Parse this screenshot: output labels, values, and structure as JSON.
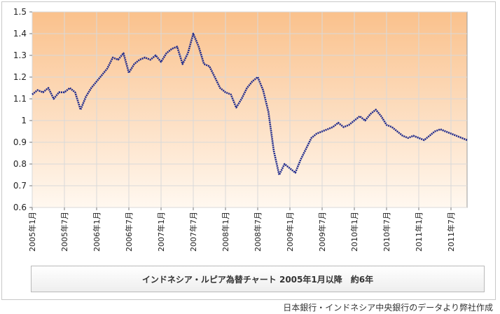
{
  "caption": "インドネシア・ルピア為替チャート 2005年1月以降　約6年",
  "source_note": "日本銀行・インドネシア中央銀行のデータより弊社作成",
  "colors": {
    "series": "#1f2a8c",
    "plot_bg_top": "#fac18c",
    "plot_bg_bottom": "#fff8f0",
    "grid": "#d9d9d9"
  },
  "chart_data": {
    "type": "line",
    "title": "",
    "xlabel": "",
    "ylabel": "",
    "ylim": [
      0.6,
      1.5
    ],
    "xlim": [
      "2005-01",
      "2011-10"
    ],
    "grid": true,
    "legend": "none",
    "yticks": [
      "0.6",
      "0.7",
      "0.8",
      "0.9",
      "1",
      "1.1",
      "1.2",
      "1.3",
      "1.4",
      "1.5"
    ],
    "xticks": [
      {
        "date": "2005-01",
        "label": "2005年1月"
      },
      {
        "date": "2005-07",
        "label": "2005年7月"
      },
      {
        "date": "2006-01",
        "label": "2006年1月"
      },
      {
        "date": "2006-07",
        "label": "2006年7月"
      },
      {
        "date": "2007-01",
        "label": "2007年1月"
      },
      {
        "date": "2007-07",
        "label": "2007年7月"
      },
      {
        "date": "2008-01",
        "label": "2008年1月"
      },
      {
        "date": "2008-07",
        "label": "2008年7月"
      },
      {
        "date": "2009-01",
        "label": "2009年1月"
      },
      {
        "date": "2009-07",
        "label": "2009年7月"
      },
      {
        "date": "2010-01",
        "label": "2010年1月"
      },
      {
        "date": "2010-07",
        "label": "2010年7月"
      },
      {
        "date": "2011-01",
        "label": "2011年1月"
      },
      {
        "date": "2011-07",
        "label": "2011年7月"
      }
    ],
    "series": [
      {
        "values": [
          [
            "2005-01",
            1.12
          ],
          [
            "2005-02",
            1.14
          ],
          [
            "2005-03",
            1.13
          ],
          [
            "2005-04",
            1.15
          ],
          [
            "2005-05",
            1.1
          ],
          [
            "2005-06",
            1.13
          ],
          [
            "2005-07",
            1.13
          ],
          [
            "2005-08",
            1.15
          ],
          [
            "2005-09",
            1.13
          ],
          [
            "2005-10",
            1.05
          ],
          [
            "2005-11",
            1.11
          ],
          [
            "2005-12",
            1.15
          ],
          [
            "2006-01",
            1.18
          ],
          [
            "2006-02",
            1.21
          ],
          [
            "2006-03",
            1.24
          ],
          [
            "2006-04",
            1.29
          ],
          [
            "2006-05",
            1.28
          ],
          [
            "2006-06",
            1.31
          ],
          [
            "2006-07",
            1.22
          ],
          [
            "2006-08",
            1.26
          ],
          [
            "2006-09",
            1.28
          ],
          [
            "2006-10",
            1.29
          ],
          [
            "2006-11",
            1.28
          ],
          [
            "2006-12",
            1.3
          ],
          [
            "2007-01",
            1.27
          ],
          [
            "2007-02",
            1.31
          ],
          [
            "2007-03",
            1.33
          ],
          [
            "2007-04",
            1.34
          ],
          [
            "2007-05",
            1.26
          ],
          [
            "2007-06",
            1.31
          ],
          [
            "2007-07",
            1.4
          ],
          [
            "2007-08",
            1.34
          ],
          [
            "2007-09",
            1.26
          ],
          [
            "2007-10",
            1.25
          ],
          [
            "2007-11",
            1.2
          ],
          [
            "2007-12",
            1.15
          ],
          [
            "2008-01",
            1.13
          ],
          [
            "2008-02",
            1.12
          ],
          [
            "2008-03",
            1.06
          ],
          [
            "2008-04",
            1.1
          ],
          [
            "2008-05",
            1.15
          ],
          [
            "2008-06",
            1.18
          ],
          [
            "2008-07",
            1.2
          ],
          [
            "2008-08",
            1.14
          ],
          [
            "2008-09",
            1.04
          ],
          [
            "2008-10",
            0.86
          ],
          [
            "2008-11",
            0.75
          ],
          [
            "2008-12",
            0.8
          ],
          [
            "2009-01",
            0.78
          ],
          [
            "2009-02",
            0.76
          ],
          [
            "2009-03",
            0.82
          ],
          [
            "2009-04",
            0.87
          ],
          [
            "2009-05",
            0.92
          ],
          [
            "2009-06",
            0.94
          ],
          [
            "2009-07",
            0.95
          ],
          [
            "2009-08",
            0.96
          ],
          [
            "2009-09",
            0.97
          ],
          [
            "2009-10",
            0.99
          ],
          [
            "2009-11",
            0.97
          ],
          [
            "2009-12",
            0.98
          ],
          [
            "2010-01",
            1.0
          ],
          [
            "2010-02",
            1.02
          ],
          [
            "2010-03",
            1.0
          ],
          [
            "2010-04",
            1.03
          ],
          [
            "2010-05",
            1.05
          ],
          [
            "2010-06",
            1.02
          ],
          [
            "2010-07",
            0.98
          ],
          [
            "2010-08",
            0.97
          ],
          [
            "2010-09",
            0.95
          ],
          [
            "2010-10",
            0.93
          ],
          [
            "2010-11",
            0.92
          ],
          [
            "2010-12",
            0.93
          ],
          [
            "2011-01",
            0.92
          ],
          [
            "2011-02",
            0.91
          ],
          [
            "2011-03",
            0.93
          ],
          [
            "2011-04",
            0.95
          ],
          [
            "2011-05",
            0.96
          ],
          [
            "2011-06",
            0.95
          ],
          [
            "2011-07",
            0.94
          ],
          [
            "2011-08",
            0.93
          ],
          [
            "2011-09",
            0.92
          ],
          [
            "2011-10",
            0.91
          ]
        ]
      }
    ]
  }
}
